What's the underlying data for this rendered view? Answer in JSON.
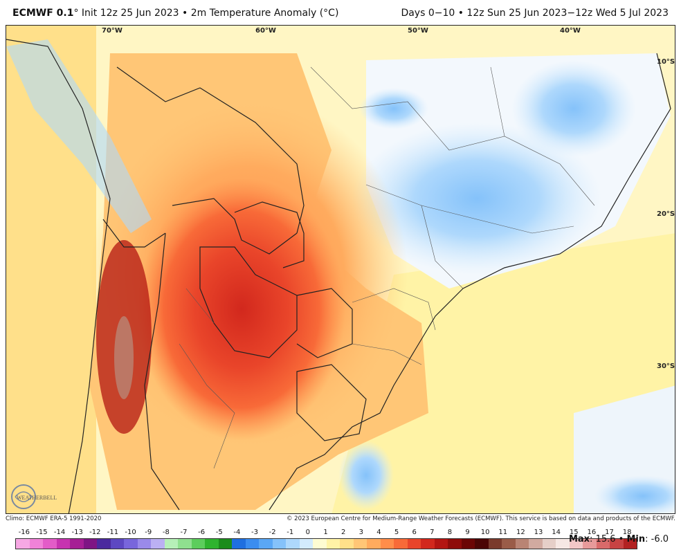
{
  "header": {
    "model": "ECMWF 0.1",
    "degree_sign": "°",
    "init_text": "Init 12z 25 Jun 2023 • 2m Temperature Anomaly (°C)",
    "valid_text": "Days 0−10 • 12z Sun 25 Jun 2023−12z Wed 5 Jul 2023"
  },
  "map": {
    "longitude_labels": [
      "70°W",
      "60°W",
      "50°W",
      "40°W"
    ],
    "latitude_labels": [
      "10°S",
      "20°S",
      "30°S"
    ]
  },
  "credits": {
    "climo": "Climo: ECMWF ERA-5 1991-2020",
    "copyright": "© 2023 European Centre for Medium-Range Weather Forecasts (ECMWF). This service is based on data and products of the ECMWF."
  },
  "legend": {
    "tick_labels": [
      "-16",
      "-15",
      "-14",
      "-13",
      "-12",
      "-11",
      "-10",
      "-9",
      "-8",
      "-7",
      "-6",
      "-5",
      "-4",
      "-3",
      "-2",
      "-1",
      "0",
      "1",
      "2",
      "3",
      "4",
      "5",
      "6",
      "7",
      "8",
      "9",
      "10",
      "11",
      "12",
      "13",
      "14",
      "15",
      "16",
      "17",
      "18"
    ],
    "colors": [
      "#f7a8e4",
      "#f082d8",
      "#e35cc8",
      "#c733b0",
      "#a61f95",
      "#7e1584",
      "#4b2a9e",
      "#5d48c2",
      "#7866dc",
      "#9a8aea",
      "#bbb0f3",
      "#b6f0b8",
      "#8fe08f",
      "#5ccd5c",
      "#2eb32e",
      "#1c8c1c",
      "#1f6fe0",
      "#3b8df0",
      "#5aa7f5",
      "#85c2fa",
      "#aed8fc",
      "#d3ebfd",
      "#fefcd2",
      "#fff3a6",
      "#ffe08a",
      "#ffc676",
      "#ffab5e",
      "#ff8d4a",
      "#f86a38",
      "#e9452a",
      "#d2281d",
      "#b31512",
      "#8e0c0a",
      "#6b0605",
      "#4b0605",
      "#7a3a2c",
      "#9a5c48",
      "#b98474",
      "#d1aaa0",
      "#e6cfc8",
      "#f6e8e4",
      "#f2c7c7",
      "#e79a9a",
      "#d96a6a",
      "#c84343",
      "#b22222"
    ],
    "max_label": "Max",
    "max_value": "15.6",
    "min_label": "Min",
    "min_value": "-6.0"
  },
  "logo_text": "WEATHERBELL"
}
